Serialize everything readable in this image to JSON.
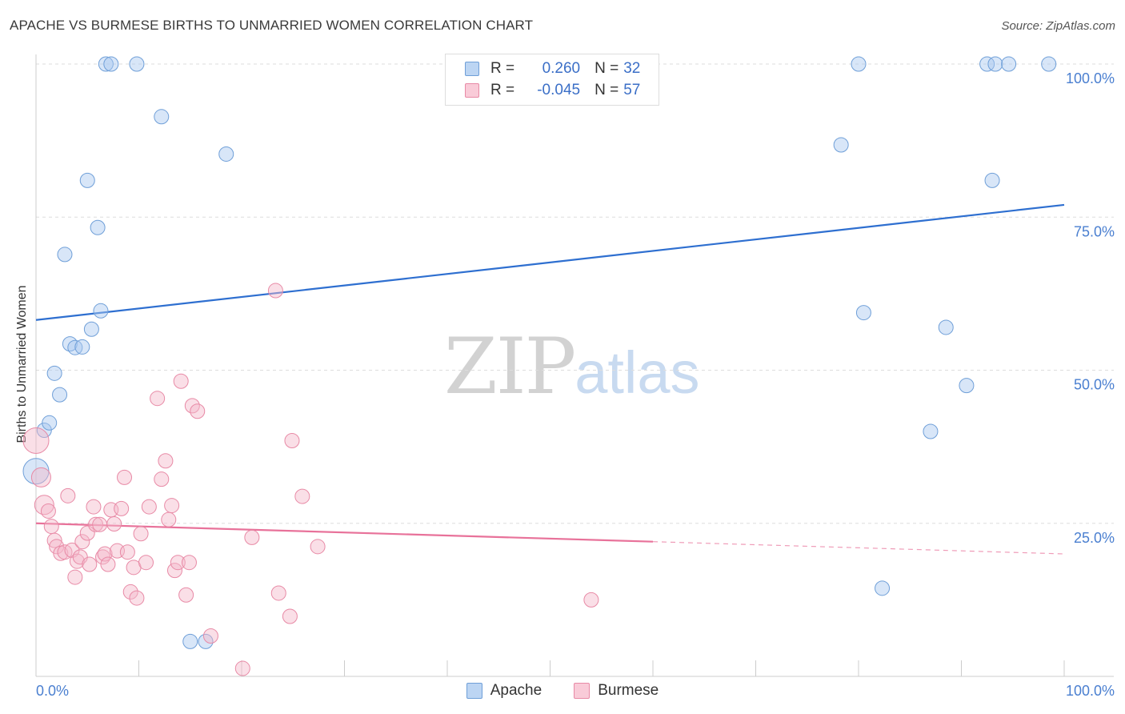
{
  "title": "APACHE VS BURMESE BIRTHS TO UNMARRIED WOMEN CORRELATION CHART",
  "source": "Source: ZipAtlas.com",
  "watermark": {
    "zip": "ZIP",
    "atlas": "atlas"
  },
  "legend": {
    "rows": [
      {
        "r_label": "R =",
        "r_value": "0.260",
        "n_label": "N =",
        "n_value": "32"
      },
      {
        "r_label": "R =",
        "r_value": "-0.045",
        "n_label": "N =",
        "n_value": "57"
      }
    ]
  },
  "bottom_legend": {
    "apache": "Apache",
    "burmese": "Burmese"
  },
  "colors": {
    "apache_fill": "#a9c8ef",
    "apache_stroke": "#6f9fd8",
    "apache_line": "#2e6fd0",
    "burmese_fill": "#f5b8ca",
    "burmese_stroke": "#e88aa6",
    "burmese_line": "#e8729a",
    "tick_label": "#4a7fd0",
    "grid": "#dddddd"
  },
  "chart_data": {
    "type": "scatter",
    "title": "APACHE VS BURMESE BIRTHS TO UNMARRIED WOMEN CORRELATION CHART",
    "xlabel": "",
    "ylabel": "Births to Unmarried Women",
    "xlim": [
      0,
      100
    ],
    "ylim": [
      0,
      100
    ],
    "x_tick_labels": [
      "0.0%",
      "100.0%"
    ],
    "y_ticks": [
      25,
      50,
      75,
      100
    ],
    "y_tick_labels": [
      "25.0%",
      "50.0%",
      "75.0%",
      "100.0%"
    ],
    "grid": true,
    "series": [
      {
        "name": "Apache",
        "r": 0.26,
        "n": 32,
        "trend": {
          "x0": 0,
          "y0": 58.2,
          "x1": 100,
          "y1": 77.0
        },
        "points": [
          {
            "x": 0.0,
            "y": 33.5,
            "size": 16
          },
          {
            "x": 0.8,
            "y": 40.2,
            "size": 9
          },
          {
            "x": 1.3,
            "y": 41.4,
            "size": 9
          },
          {
            "x": 1.8,
            "y": 49.5,
            "size": 9
          },
          {
            "x": 2.3,
            "y": 46.0,
            "size": 9
          },
          {
            "x": 2.8,
            "y": 68.9,
            "size": 9
          },
          {
            "x": 3.3,
            "y": 54.3,
            "size": 9
          },
          {
            "x": 3.8,
            "y": 53.7,
            "size": 9
          },
          {
            "x": 4.5,
            "y": 53.8,
            "size": 9
          },
          {
            "x": 5.0,
            "y": 81.0,
            "size": 9
          },
          {
            "x": 5.4,
            "y": 56.7,
            "size": 9
          },
          {
            "x": 6.0,
            "y": 73.3,
            "size": 9
          },
          {
            "x": 6.3,
            "y": 59.7,
            "size": 9
          },
          {
            "x": 6.8,
            "y": 100.0,
            "size": 9
          },
          {
            "x": 7.3,
            "y": 100.0,
            "size": 9
          },
          {
            "x": 9.8,
            "y": 100.0,
            "size": 9
          },
          {
            "x": 12.2,
            "y": 91.4,
            "size": 9
          },
          {
            "x": 18.5,
            "y": 85.3,
            "size": 9
          },
          {
            "x": 15.0,
            "y": 5.7,
            "size": 9
          },
          {
            "x": 16.5,
            "y": 5.7,
            "size": 9
          },
          {
            "x": 78.3,
            "y": 86.8,
            "size": 9
          },
          {
            "x": 80.0,
            "y": 100.0,
            "size": 9
          },
          {
            "x": 80.5,
            "y": 59.4,
            "size": 9
          },
          {
            "x": 82.3,
            "y": 14.4,
            "size": 9
          },
          {
            "x": 87.0,
            "y": 40.0,
            "size": 9
          },
          {
            "x": 88.5,
            "y": 57.0,
            "size": 9
          },
          {
            "x": 90.5,
            "y": 47.5,
            "size": 9
          },
          {
            "x": 92.5,
            "y": 100.0,
            "size": 9
          },
          {
            "x": 93.0,
            "y": 81.0,
            "size": 9
          },
          {
            "x": 93.3,
            "y": 100.0,
            "size": 9
          },
          {
            "x": 94.6,
            "y": 100.0,
            "size": 9
          },
          {
            "x": 98.5,
            "y": 100.0,
            "size": 9
          }
        ]
      },
      {
        "name": "Burmese",
        "r": -0.045,
        "n": 57,
        "trend": {
          "x0": 0,
          "y0": 25.0,
          "x1": 60,
          "y1": 22.0
        },
        "trend_dashed": {
          "x0": 60,
          "y0": 22.0,
          "x1": 100,
          "y1": 20.0
        },
        "points": [
          {
            "x": 0.0,
            "y": 38.5,
            "size": 16
          },
          {
            "x": 0.5,
            "y": 32.5,
            "size": 12
          },
          {
            "x": 0.8,
            "y": 28.0,
            "size": 12
          },
          {
            "x": 1.2,
            "y": 27.0,
            "size": 9
          },
          {
            "x": 1.5,
            "y": 24.5,
            "size": 9
          },
          {
            "x": 1.8,
            "y": 22.2,
            "size": 9
          },
          {
            "x": 2.0,
            "y": 21.2,
            "size": 9
          },
          {
            "x": 2.4,
            "y": 20.1,
            "size": 9
          },
          {
            "x": 2.8,
            "y": 20.3,
            "size": 9
          },
          {
            "x": 3.1,
            "y": 29.5,
            "size": 9
          },
          {
            "x": 3.5,
            "y": 20.6,
            "size": 9
          },
          {
            "x": 3.8,
            "y": 16.2,
            "size": 9
          },
          {
            "x": 4.0,
            "y": 18.8,
            "size": 9
          },
          {
            "x": 4.3,
            "y": 19.5,
            "size": 9
          },
          {
            "x": 4.5,
            "y": 22.0,
            "size": 9
          },
          {
            "x": 5.0,
            "y": 23.4,
            "size": 9
          },
          {
            "x": 5.2,
            "y": 18.3,
            "size": 9
          },
          {
            "x": 5.6,
            "y": 27.7,
            "size": 9
          },
          {
            "x": 5.8,
            "y": 24.8,
            "size": 9
          },
          {
            "x": 6.2,
            "y": 24.8,
            "size": 9
          },
          {
            "x": 6.5,
            "y": 19.5,
            "size": 9
          },
          {
            "x": 6.7,
            "y": 20.0,
            "size": 9
          },
          {
            "x": 7.0,
            "y": 18.3,
            "size": 9
          },
          {
            "x": 7.3,
            "y": 27.2,
            "size": 9
          },
          {
            "x": 7.6,
            "y": 24.9,
            "size": 9
          },
          {
            "x": 7.9,
            "y": 20.5,
            "size": 9
          },
          {
            "x": 8.3,
            "y": 27.4,
            "size": 9
          },
          {
            "x": 8.6,
            "y": 32.5,
            "size": 9
          },
          {
            "x": 8.9,
            "y": 20.3,
            "size": 9
          },
          {
            "x": 9.2,
            "y": 13.8,
            "size": 9
          },
          {
            "x": 9.5,
            "y": 17.8,
            "size": 9
          },
          {
            "x": 9.8,
            "y": 12.8,
            "size": 9
          },
          {
            "x": 10.2,
            "y": 23.3,
            "size": 9
          },
          {
            "x": 10.7,
            "y": 18.6,
            "size": 9
          },
          {
            "x": 11.0,
            "y": 27.7,
            "size": 9
          },
          {
            "x": 11.8,
            "y": 45.4,
            "size": 9
          },
          {
            "x": 12.2,
            "y": 32.2,
            "size": 9
          },
          {
            "x": 12.6,
            "y": 35.2,
            "size": 9
          },
          {
            "x": 12.9,
            "y": 25.6,
            "size": 9
          },
          {
            "x": 13.2,
            "y": 27.9,
            "size": 9
          },
          {
            "x": 13.5,
            "y": 17.3,
            "size": 9
          },
          {
            "x": 13.8,
            "y": 18.6,
            "size": 9
          },
          {
            "x": 14.1,
            "y": 48.2,
            "size": 9
          },
          {
            "x": 14.6,
            "y": 13.3,
            "size": 9
          },
          {
            "x": 14.9,
            "y": 18.6,
            "size": 9
          },
          {
            "x": 15.2,
            "y": 44.2,
            "size": 9
          },
          {
            "x": 15.7,
            "y": 43.3,
            "size": 9
          },
          {
            "x": 17.0,
            "y": 6.6,
            "size": 9
          },
          {
            "x": 20.1,
            "y": 1.3,
            "size": 9
          },
          {
            "x": 21.0,
            "y": 22.7,
            "size": 9
          },
          {
            "x": 23.3,
            "y": 63.0,
            "size": 9
          },
          {
            "x": 23.6,
            "y": 13.6,
            "size": 9
          },
          {
            "x": 24.7,
            "y": 9.8,
            "size": 9
          },
          {
            "x": 24.9,
            "y": 38.5,
            "size": 9
          },
          {
            "x": 25.9,
            "y": 29.4,
            "size": 9
          },
          {
            "x": 27.4,
            "y": 21.2,
            "size": 9
          },
          {
            "x": 54.0,
            "y": 12.5,
            "size": 9
          }
        ]
      }
    ]
  }
}
